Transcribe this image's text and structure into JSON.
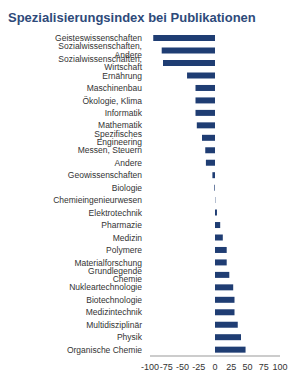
{
  "chart_data": {
    "type": "bar",
    "orientation": "horizontal",
    "title": "Spezialisierungsindex bei Publikationen",
    "categories": [
      "Geisteswissenschaften",
      "Sozialwissenschaften, Andere",
      "Sozialwissenschaften, Wirtschaft",
      "Ernährung",
      "Maschinenbau",
      "Ökologie, Klima",
      "Informatik",
      "Mathematik",
      "Spezifisches Engineering",
      "Messen, Steuern",
      "Andere",
      "Geowissenschaften",
      "Biologie",
      "Chemieingenieurwesen",
      "Elektrotechnik",
      "Pharmazie",
      "Medizin",
      "Polymere",
      "Materialforschung",
      "Grundlegende Chemie",
      "Nukleartechnologie",
      "Biotechnologie",
      "Medizintechnik",
      "Multidisziplinär",
      "Physik",
      "Organische Chemie"
    ],
    "values": [
      -95,
      -82,
      -80,
      -43,
      -30,
      -30,
      -30,
      -28,
      -20,
      -15,
      -14,
      -4,
      -1,
      0.5,
      3,
      8,
      12,
      18,
      18,
      22,
      28,
      30,
      30,
      35,
      40,
      47
    ],
    "color": "#1f3d73",
    "xlim": [
      -100,
      100
    ],
    "xticks": [
      -100,
      -75,
      -50,
      -25,
      0,
      25,
      50,
      75,
      100
    ],
    "grid": false
  }
}
